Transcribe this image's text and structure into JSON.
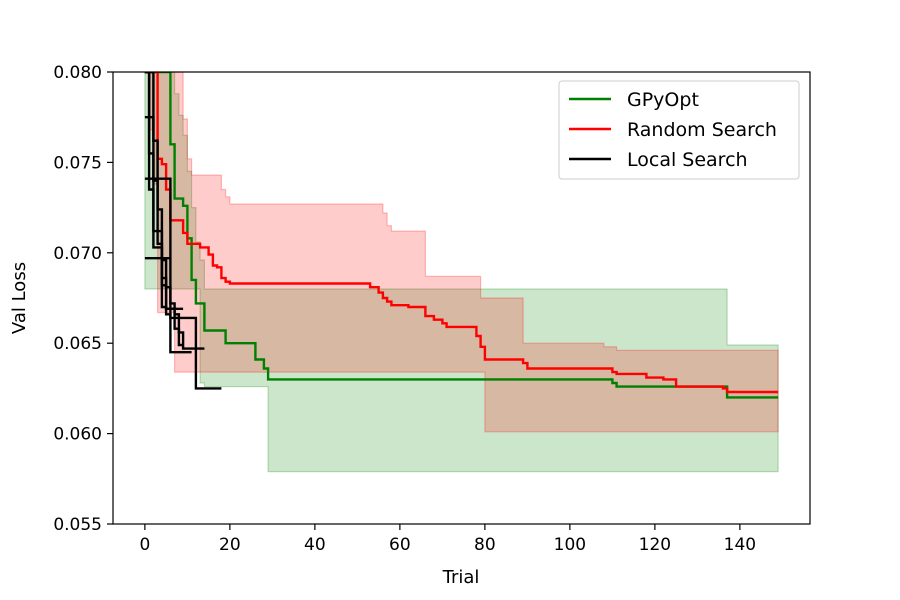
{
  "chart_data": {
    "type": "line",
    "xlabel": "Trial",
    "ylabel": "Val Loss",
    "xlim": [
      -7.5,
      156.5
    ],
    "ylim": [
      0.055,
      0.08
    ],
    "xticks": [
      0,
      20,
      40,
      60,
      80,
      100,
      120,
      140
    ],
    "yticks": [
      0.055,
      0.06,
      0.065,
      0.07,
      0.075,
      0.08
    ],
    "ytick_labels": [
      "0.055",
      "0.060",
      "0.065",
      "0.070",
      "0.075",
      "0.080"
    ],
    "grid": false,
    "legend_position": "top-right",
    "legend": [
      "GPyOpt",
      "Random Search",
      "Local Search"
    ],
    "bands": [
      {
        "series": "GPyOpt",
        "color": "#008000",
        "x": [
          0,
          1,
          2,
          3,
          4,
          5,
          6,
          7,
          8,
          9,
          10,
          11,
          12,
          13,
          14,
          20,
          26,
          27,
          28,
          29,
          136,
          137,
          149
        ],
        "upper": [
          0.08,
          0.08,
          0.08,
          0.08,
          0.08,
          0.08,
          0.08,
          0.0788,
          0.0776,
          0.0765,
          0.0745,
          0.0725,
          0.0706,
          0.0696,
          0.068,
          0.068,
          0.068,
          0.068,
          0.068,
          0.068,
          0.068,
          0.0649,
          0.0649
        ],
        "lower": [
          0.068,
          0.068,
          0.068,
          0.068,
          0.068,
          0.068,
          0.068,
          0.068,
          0.068,
          0.068,
          0.068,
          0.068,
          0.068,
          0.0628,
          0.0626,
          0.0626,
          0.0626,
          0.0626,
          0.0626,
          0.0579,
          0.0579,
          0.0579,
          0.0579
        ]
      },
      {
        "series": "Random Search",
        "color": "#ff0000",
        "x": [
          0,
          1,
          2,
          3,
          4,
          5,
          6,
          7,
          8,
          9,
          10,
          11,
          17,
          18,
          19,
          20,
          28,
          29,
          55,
          56,
          57,
          58,
          65,
          66,
          67,
          78,
          79,
          80,
          88,
          89,
          90,
          106,
          108,
          110,
          111,
          149
        ],
        "upper": [
          0.08,
          0.08,
          0.08,
          0.08,
          0.08,
          0.08,
          0.08,
          0.08,
          0.08,
          0.0774,
          0.0752,
          0.0743,
          0.0743,
          0.0735,
          0.0731,
          0.0727,
          0.0727,
          0.0727,
          0.0727,
          0.0722,
          0.0715,
          0.0712,
          0.0712,
          0.0687,
          0.0687,
          0.0687,
          0.0675,
          0.0675,
          0.0675,
          0.065,
          0.065,
          0.065,
          0.0648,
          0.0648,
          0.0646,
          0.0646
        ],
        "lower": [
          0.08,
          0.0768,
          0.0738,
          0.0667,
          0.0667,
          0.0667,
          0.0667,
          0.0634,
          0.0634,
          0.0634,
          0.0634,
          0.0634,
          0.0634,
          0.0634,
          0.0634,
          0.0634,
          0.0634,
          0.0634,
          0.0634,
          0.0634,
          0.0634,
          0.0634,
          0.0634,
          0.0634,
          0.0634,
          0.0634,
          0.0634,
          0.0601,
          0.0601,
          0.0601,
          0.0601,
          0.0601,
          0.0601,
          0.0601,
          0.0601,
          0.0601
        ]
      }
    ],
    "series": [
      {
        "name": "GPyOpt",
        "color": "#008000",
        "x": [
          0,
          1,
          2,
          3,
          4,
          5,
          6,
          7,
          8,
          9,
          10,
          11,
          12,
          13,
          14,
          18,
          19,
          25,
          26,
          27,
          28,
          29,
          108,
          110,
          111,
          136,
          137,
          149
        ],
        "y": [
          0.08,
          0.08,
          0.08,
          0.08,
          0.08,
          0.08,
          0.076,
          0.073,
          0.073,
          0.0726,
          0.0708,
          0.0685,
          0.0672,
          0.0672,
          0.0657,
          0.0657,
          0.065,
          0.065,
          0.0641,
          0.0641,
          0.0636,
          0.063,
          0.063,
          0.0628,
          0.0626,
          0.0626,
          0.062,
          0.062
        ]
      },
      {
        "name": "Random Search",
        "color": "#ff0000",
        "x": [
          0,
          1,
          2,
          3,
          4,
          5,
          6,
          7,
          8,
          9,
          10,
          11,
          13,
          15,
          16,
          17,
          18,
          19,
          20,
          52,
          53,
          55,
          56,
          57,
          58,
          62,
          65,
          66,
          67,
          68,
          70,
          71,
          73,
          78,
          79,
          80,
          88,
          89,
          90,
          109,
          110,
          111,
          116,
          118,
          122,
          124,
          125,
          134,
          136,
          137,
          149
        ],
        "y": [
          0.08,
          0.08,
          0.08,
          0.0752,
          0.0749,
          0.0735,
          0.0718,
          0.0718,
          0.0718,
          0.0711,
          0.0705,
          0.0705,
          0.0703,
          0.0699,
          0.0693,
          0.0692,
          0.0686,
          0.0684,
          0.0683,
          0.0683,
          0.0681,
          0.0678,
          0.0675,
          0.0673,
          0.0671,
          0.067,
          0.067,
          0.0665,
          0.0665,
          0.0663,
          0.0661,
          0.0659,
          0.0659,
          0.0654,
          0.0648,
          0.0641,
          0.0641,
          0.0639,
          0.0636,
          0.0636,
          0.0634,
          0.0633,
          0.0633,
          0.0631,
          0.063,
          0.063,
          0.0626,
          0.0626,
          0.0625,
          0.0623,
          0.0623
        ]
      },
      {
        "name": "Local Search",
        "color": "#000000",
        "runs": [
          {
            "x": [
              0,
              1,
              2,
              3,
              4,
              5,
              6,
              7,
              8,
              9,
              10,
              11,
              12,
              13,
              14
            ],
            "y": [
              0.0775,
              0.0775,
              0.074,
              0.0705,
              0.067,
              0.0669,
              0.0669,
              0.0666,
              0.0656,
              0.0647,
              0.0647,
              0.0647,
              0.0647,
              0.0647,
              0.0647
            ]
          },
          {
            "x": [
              0,
              1,
              2,
              3,
              4,
              5,
              6,
              7,
              8,
              9
            ],
            "y": [
              0.0741,
              0.0741,
              0.0741,
              0.0741,
              0.0741,
              0.0741,
              0.0672,
              0.0658,
              0.0649,
              0.0649
            ]
          },
          {
            "x": [
              0,
              1,
              2,
              3,
              4,
              5,
              6
            ],
            "y": [
              0.0697,
              0.0697,
              0.0697,
              0.0697,
              0.0697,
              0.0697,
              0.0697
            ]
          },
          {
            "x": [
              0,
              1,
              2,
              3,
              4,
              5,
              6,
              7,
              8,
              9
            ],
            "y": [
              0.08,
              0.0755,
              0.0712,
              0.0712,
              0.0686,
              0.0669,
              0.0669,
              0.0669,
              0.0669,
              0.0669
            ]
          },
          {
            "x": [
              0,
              1,
              2,
              3,
              4,
              5,
              6,
              7,
              8,
              9,
              10,
              11
            ],
            "y": [
              0.08,
              0.0735,
              0.0703,
              0.0703,
              0.0682,
              0.0666,
              0.0645,
              0.0645,
              0.0645,
              0.0645,
              0.0645,
              0.0645
            ]
          },
          {
            "x": [
              0,
              1,
              2,
              3,
              4,
              5,
              6,
              7,
              8,
              9,
              10,
              11,
              12,
              13,
              14,
              15,
              16,
              17,
              18
            ],
            "y": [
              0.08,
              0.08,
              0.0762,
              0.0724,
              0.0696,
              0.0681,
              0.0664,
              0.0664,
              0.0664,
              0.0664,
              0.0664,
              0.0664,
              0.0625,
              0.0625,
              0.0625,
              0.0625,
              0.0625,
              0.0625,
              0.0625
            ]
          }
        ]
      }
    ]
  }
}
